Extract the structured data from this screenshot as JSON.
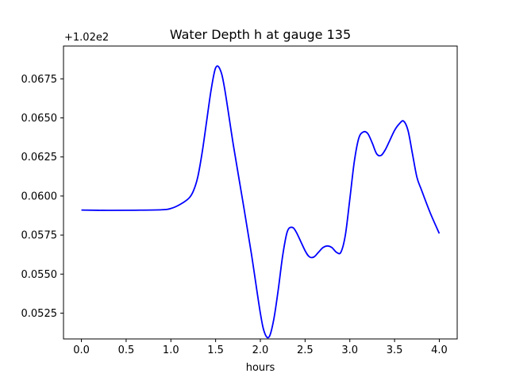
{
  "chart_data": {
    "type": "line",
    "title": "Water Depth h at gauge 135",
    "xlabel": "hours",
    "ylabel": "",
    "offset_label": "+1.02e2",
    "offset_value": 102,
    "xlim": [
      -0.2,
      4.2
    ],
    "ylim": [
      0.05085,
      0.0696
    ],
    "xticks": [
      0.0,
      0.5,
      1.0,
      1.5,
      2.0,
      2.5,
      3.0,
      3.5,
      4.0
    ],
    "xtick_labels": [
      "0.0",
      "0.5",
      "1.0",
      "1.5",
      "2.0",
      "2.5",
      "3.0",
      "3.5",
      "4.0"
    ],
    "yticks": [
      0.0525,
      0.055,
      0.0575,
      0.06,
      0.0625,
      0.065,
      0.0675
    ],
    "ytick_labels": [
      "0.0525",
      "0.0550",
      "0.0575",
      "0.0600",
      "0.0625",
      "0.0650",
      "0.0675"
    ],
    "grid": false,
    "series": [
      {
        "color": "#0000ff",
        "x": [
          0.0,
          0.3,
          0.6,
          0.9,
          1.0,
          1.1,
          1.2,
          1.25,
          1.3,
          1.35,
          1.4,
          1.45,
          1.5,
          1.55,
          1.6,
          1.7,
          1.8,
          1.9,
          2.0,
          2.05,
          2.1,
          2.15,
          2.2,
          2.25,
          2.3,
          2.35,
          2.4,
          2.5,
          2.55,
          2.6,
          2.65,
          2.7,
          2.75,
          2.8,
          2.85,
          2.9,
          2.95,
          3.0,
          3.05,
          3.1,
          3.15,
          3.2,
          3.25,
          3.3,
          3.35,
          3.4,
          3.45,
          3.5,
          3.55,
          3.6,
          3.65,
          3.7,
          3.75,
          3.8,
          3.9,
          4.0
        ],
        "y": [
          0.0591,
          0.05908,
          0.05909,
          0.05912,
          0.0592,
          0.05945,
          0.05985,
          0.0603,
          0.0612,
          0.0628,
          0.0648,
          0.0668,
          0.0682,
          0.0681,
          0.0669,
          0.0632,
          0.0598,
          0.0563,
          0.0525,
          0.0512,
          0.051,
          0.0521,
          0.054,
          0.0562,
          0.0577,
          0.058,
          0.0577,
          0.0565,
          0.0561,
          0.0561,
          0.0564,
          0.0567,
          0.0568,
          0.0567,
          0.0564,
          0.0564,
          0.0575,
          0.0598,
          0.0622,
          0.0637,
          0.0641,
          0.064,
          0.0634,
          0.0627,
          0.0626,
          0.063,
          0.0636,
          0.0642,
          0.0646,
          0.0648,
          0.0642,
          0.0627,
          0.0612,
          0.0604,
          0.0589,
          0.0576
        ]
      }
    ]
  }
}
